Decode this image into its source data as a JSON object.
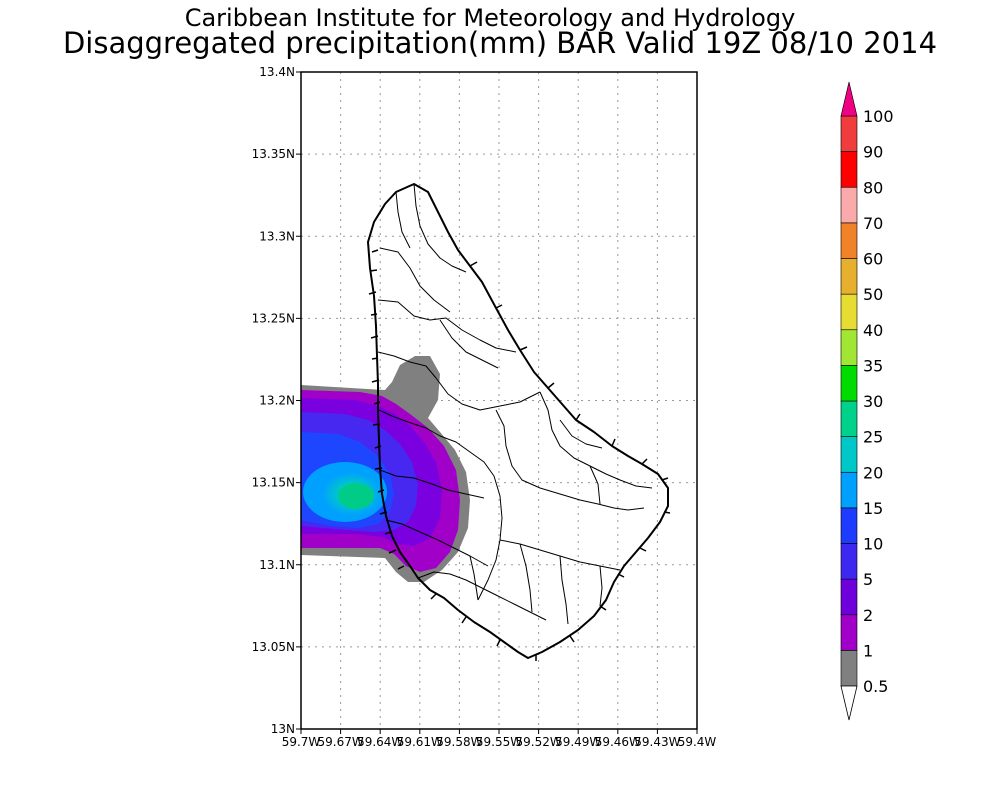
{
  "header": {
    "line1": "Caribbean Institute for Meteorology and Hydrology",
    "line2": "Disaggregated precipitation(mm) BAR Valid 19Z 08/10 2014"
  },
  "map": {
    "region": "Barbados",
    "lat_range": [
      13.0,
      13.4
    ],
    "lon_range": [
      -59.7,
      -59.4
    ],
    "grid": true,
    "lat_ticks": [
      "13N",
      "13.05N",
      "13.1N",
      "13.15N",
      "13.2N",
      "13.25N",
      "13.3N",
      "13.35N",
      "13.4N"
    ],
    "lon_ticks": [
      "59.7W",
      "59.67W",
      "59.64W",
      "59.61W",
      "59.58W",
      "59.55W",
      "59.52W",
      "59.49W",
      "59.46W",
      "59.43W",
      "59.4W"
    ]
  },
  "colorbar": {
    "levels": [
      "0.5",
      "1",
      "2",
      "5",
      "10",
      "15",
      "20",
      "25",
      "30",
      "35",
      "40",
      "50",
      "60",
      "70",
      "80",
      "90",
      "100"
    ],
    "colors": [
      "#808080",
      "#a000c8",
      "#6e00dc",
      "#3c28f0",
      "#1e3cff",
      "#00a0ff",
      "#00c8c8",
      "#00d28c",
      "#00dc00",
      "#a0e632",
      "#e6dc32",
      "#e6af2d",
      "#f08228",
      "#faaaaa",
      "#ff0000",
      "#f03c3c",
      "#f00082"
    ],
    "lower_extension_color": "#ffffff",
    "upper_extension_color": "#f00082"
  }
}
